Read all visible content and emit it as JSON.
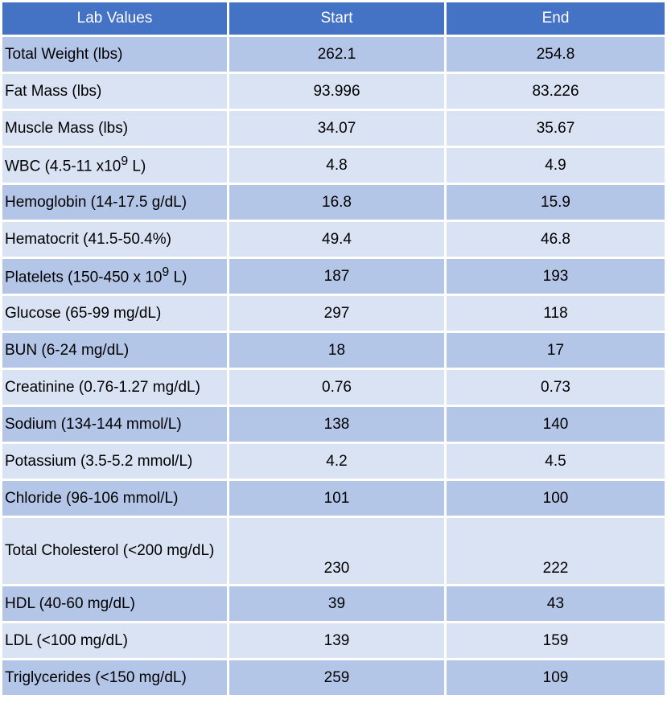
{
  "table": {
    "headers": [
      "Lab Values",
      "Start",
      "End"
    ],
    "rows": [
      {
        "label": "Total Weight (lbs)",
        "start": "262.1",
        "end": "254.8"
      },
      {
        "label": "Fat Mass (lbs)",
        "start": "93.996",
        "end": "83.226"
      },
      {
        "label": "Muscle Mass (lbs)",
        "start": "34.07",
        "end": "35.67"
      },
      {
        "label_pre": "WBC (4.5-11 x10",
        "label_sup": "9",
        "label_post": " L)",
        "start": "4.8",
        "end": "4.9"
      },
      {
        "label": "Hemoglobin (14-17.5 g/dL)",
        "start": "16.8",
        "end": "15.9"
      },
      {
        "label": "Hematocrit (41.5-50.4%)",
        "start": "49.4",
        "end": "46.8"
      },
      {
        "label_pre": "Platelets (150-450 x 10",
        "label_sup": "9",
        "label_post": " L)",
        "start": "187",
        "end": "193"
      },
      {
        "label": "Glucose (65-99 mg/dL)",
        "start": "297",
        "end": "118"
      },
      {
        "label": "BUN (6-24 mg/dL)",
        "start": "18",
        "end": "17"
      },
      {
        "label": "Creatinine (0.76-1.27 mg/dL)",
        "start": "0.76",
        "end": "0.73"
      },
      {
        "label": "Sodium (134-144 mmol/L)",
        "start": "138",
        "end": "140"
      },
      {
        "label": "Potassium (3.5-5.2 mmol/L)",
        "start": "4.2",
        "end": "4.5"
      },
      {
        "label": "Chloride (96-106 mmol/L)",
        "start": "101",
        "end": "100"
      },
      {
        "label": "Total Cholesterol (<200 mg/dL)",
        "start": "230",
        "end": "222"
      },
      {
        "label": "HDL (40-60 mg/dL)",
        "start": "39",
        "end": "43"
      },
      {
        "label": "LDL (<100 mg/dL)",
        "start": "139",
        "end": "159"
      },
      {
        "label": "Triglycerides (<150 mg/dL)",
        "start": "259",
        "end": "109"
      }
    ]
  },
  "colors": {
    "header": "#4472c4",
    "row_dark": "#b4c6e7",
    "row_light": "#dae3f3"
  }
}
